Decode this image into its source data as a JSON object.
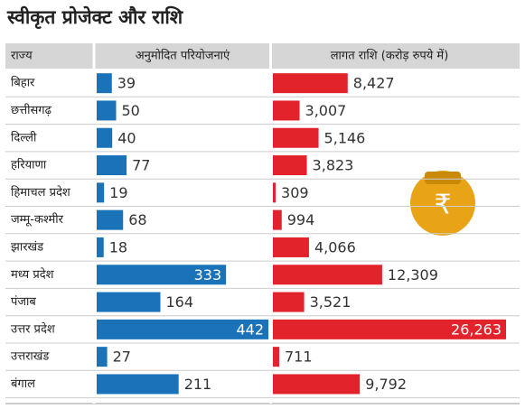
{
  "chart_data": {
    "type": "bar",
    "title": "स्वीकृत प्रोजेक्ट और राशि",
    "category_label": "राज्य",
    "categories": [
      "बिहार",
      "छत्तीसगढ़",
      "दिल्ली",
      "हरियाणा",
      "हिमाचल प्रदेश",
      "जम्मू-कश्मीर",
      "झारखंड",
      "मध्य प्रदेश",
      "पंजाब",
      "उत्तर प्रदेश",
      "उत्तराखंड",
      "बंगाल"
    ],
    "series": [
      {
        "name": "अनुमोदित परियोजनाएं",
        "color": "#1a73b8",
        "values": [
          39,
          50,
          40,
          77,
          19,
          68,
          18,
          333,
          164,
          442,
          27,
          211
        ]
      },
      {
        "name": "लागत राशि (करोड़ रुपये में)",
        "color": "#e3232b",
        "values": [
          8427,
          3007,
          5146,
          3823,
          309,
          994,
          4066,
          12309,
          3521,
          26263,
          711,
          9792
        ],
        "value_labels": [
          "8,427",
          "3,007",
          "5,146",
          "3,823",
          "309",
          "994",
          "4,066",
          "12,309",
          "3,521",
          "26,263",
          "711",
          "9,792"
        ]
      }
    ]
  }
}
